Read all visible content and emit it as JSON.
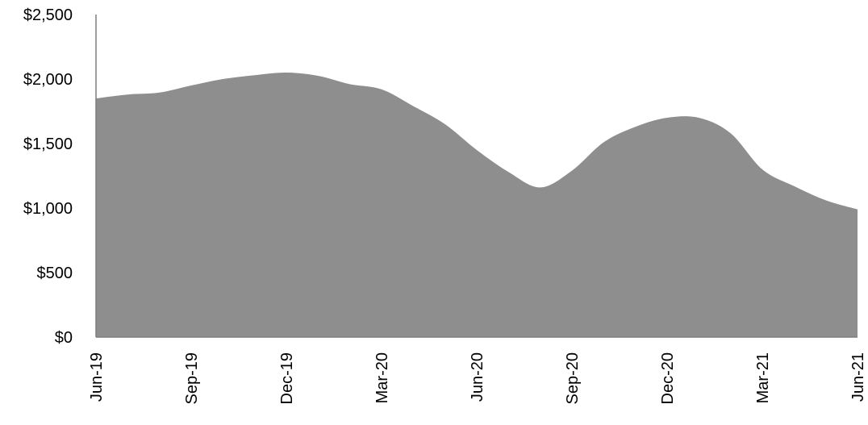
{
  "chart_data": {
    "type": "area",
    "title": "",
    "xlabel": "",
    "ylabel": "",
    "ylim": [
      0,
      2500
    ],
    "y_ticks": [
      "$0",
      "$500",
      "$1,000",
      "$1,500",
      "$2,000",
      "$2,500"
    ],
    "x_tick_labels": [
      "Jun-19",
      "Sep-19",
      "Dec-19",
      "Mar-20",
      "Jun-20",
      "Sep-20",
      "Dec-20",
      "Mar-21",
      "Jun-21"
    ],
    "x": [
      "Jun-19",
      "Jul-19",
      "Aug-19",
      "Sep-19",
      "Oct-19",
      "Nov-19",
      "Dec-19",
      "Jan-20",
      "Feb-20",
      "Mar-20",
      "Apr-20",
      "May-20",
      "Jun-20",
      "Jul-20",
      "Aug-20",
      "Sep-20",
      "Oct-20",
      "Nov-20",
      "Dec-20",
      "Jan-21",
      "Feb-21",
      "Mar-21",
      "Apr-21",
      "May-21",
      "Jun-21"
    ],
    "series": [
      {
        "values": [
          1850,
          1880,
          1895,
          1950,
          2000,
          2030,
          2050,
          2025,
          1960,
          1920,
          1790,
          1650,
          1450,
          1280,
          1160,
          1290,
          1510,
          1630,
          1700,
          1700,
          1580,
          1300,
          1170,
          1060,
          990
        ]
      }
    ],
    "grid": false,
    "legend": "none",
    "colors": {
      "area": "#8e8e8e",
      "axis": "#7f7f7f",
      "text": "#000000"
    }
  }
}
